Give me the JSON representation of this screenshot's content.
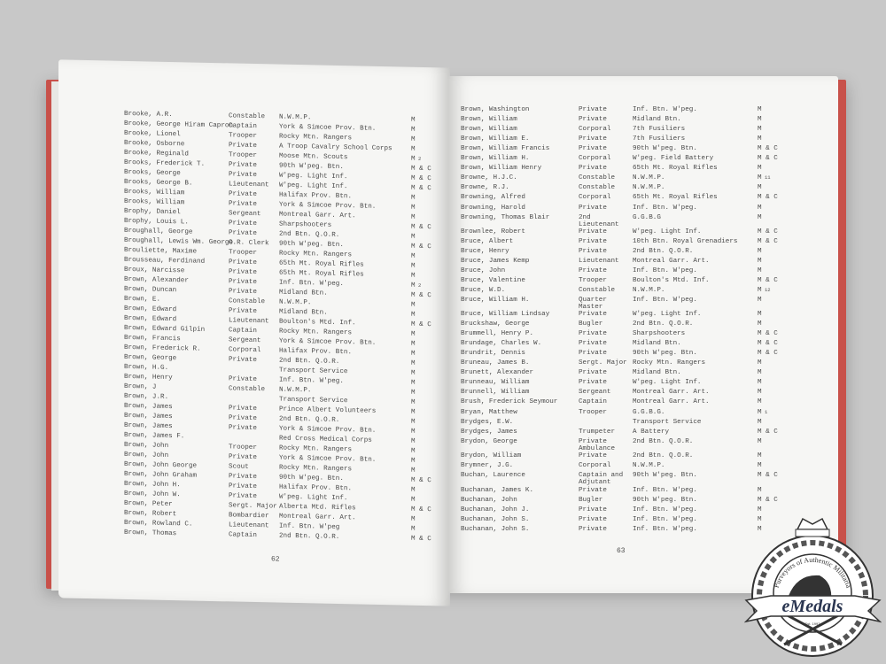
{
  "left_page": {
    "page_number": "62",
    "rows": [
      [
        "Brooke, A.R.",
        "Constable",
        "N.W.M.P.",
        "M",
        ""
      ],
      [
        "Brooke, George Hiram Capron",
        "Captain",
        "York & Simcoe Prov. Btn.",
        "M",
        ""
      ],
      [
        "Brooke, Lionel",
        "Trooper",
        "Rocky Mtn. Rangers",
        "M",
        ""
      ],
      [
        "Brooke, Osborne",
        "Private",
        "A Troop Cavalry School Corps",
        "M",
        ""
      ],
      [
        "Brooke, Reginald",
        "Trooper",
        "Moose Mtn. Scouts",
        "M",
        "2"
      ],
      [
        "Brooks, Frederick T.",
        "Private",
        "90th W'peg. Btn.",
        "M & C",
        ""
      ],
      [
        "Brooks, George",
        "Private",
        "W'peg. Light Inf.",
        "M & C",
        ""
      ],
      [
        "Brooks, George B.",
        "Lieutenant",
        "W'peg. Light Inf.",
        "M & C",
        ""
      ],
      [
        "Brooks, William",
        "Private",
        "Halifax Prov. Btn.",
        "M",
        ""
      ],
      [
        "Brooks, William",
        "Private",
        "York & Simcoe Prov. Btn.",
        "M",
        ""
      ],
      [
        "Brophy, Daniel",
        "Sergeant",
        "Montreal Garr. Art.",
        "M",
        ""
      ],
      [
        "Brophy, Louis L.",
        "Private",
        "Sharpshooters",
        "M & C",
        ""
      ],
      [
        "Broughall, George",
        "Private",
        "2nd Btn. Q.O.R.",
        "M",
        ""
      ],
      [
        "Broughall, Lewis Wm. George",
        "O.R. Clerk",
        "90th W'peg. Btn.",
        "M & C",
        ""
      ],
      [
        "Brouliette, Maxime",
        "Trooper",
        "Rocky Mtn. Rangers",
        "M",
        ""
      ],
      [
        "Brousseau, Ferdinand",
        "Private",
        "65th Mt. Royal Rifles",
        "M",
        ""
      ],
      [
        "Broux, Narcisse",
        "Private",
        "65th Mt. Royal Rifles",
        "M",
        ""
      ],
      [
        "Brown, Alexander",
        "Private",
        "Inf. Btn. W'peg.",
        "M",
        "2"
      ],
      [
        "Brown, Duncan",
        "Private",
        "Midland Btn.",
        "M & C",
        ""
      ],
      [
        "Brown, E.",
        "Constable",
        "N.W.M.P.",
        "M",
        ""
      ],
      [
        "Brown, Edward",
        "Private",
        "Midland Btn.",
        "M",
        ""
      ],
      [
        "Brown, Edward",
        "Lieutenant",
        "Boulton's Mtd. Inf.",
        "M & C",
        ""
      ],
      [
        "Brown, Edward Gilpin",
        "Captain",
        "Rocky Mtn. Rangers",
        "M",
        ""
      ],
      [
        "Brown, Francis",
        "Sergeant",
        "York & Simcoe Prov. Btn.",
        "M",
        ""
      ],
      [
        "Brown, Frederick R.",
        "Corporal",
        "Halifax Prov. Btn.",
        "M",
        ""
      ],
      [
        "Brown, George",
        "Private",
        "2nd Btn. Q.O.R.",
        "M",
        ""
      ],
      [
        "Brown, H.G.",
        "",
        "Transport Service",
        "M",
        ""
      ],
      [
        "Brown, Henry",
        "Private",
        "Inf. Btn. W'peg.",
        "M",
        ""
      ],
      [
        "Brown, J",
        "Constable",
        "N.W.M.P.",
        "M",
        ""
      ],
      [
        "Brown, J.R.",
        "",
        "Transport Service",
        "M",
        ""
      ],
      [
        "Brown, James",
        "Private",
        "Prince Albert Volunteers",
        "M",
        ""
      ],
      [
        "Brown, James",
        "Private",
        "2nd Btn. Q.O.R.",
        "M",
        ""
      ],
      [
        "Brown, James",
        "Private",
        "York & Simcoe Prov. Btn.",
        "M",
        ""
      ],
      [
        "Brown, James F.",
        "",
        "Red Cross Medical Corps",
        "M",
        ""
      ],
      [
        "Brown, John",
        "Trooper",
        "Rocky Mtn. Rangers",
        "M",
        ""
      ],
      [
        "Brown, John",
        "Private",
        "York & Simcoe Prov. Btn.",
        "M",
        ""
      ],
      [
        "Brown, John George",
        "Scout",
        "Rocky Mtn. Rangers",
        "M",
        ""
      ],
      [
        "Brown, John Graham",
        "Private",
        "90th W'peg. Btn.",
        "M & C",
        ""
      ],
      [
        "Brown, John H.",
        "Private",
        "Halifax Prov. Btn.",
        "M",
        ""
      ],
      [
        "Brown, John W.",
        "Private",
        "W'peg. Light Inf.",
        "M",
        ""
      ],
      [
        "Brown, Peter",
        "Sergt. Major",
        "Alberta Mtd. Rifles",
        "M & C",
        ""
      ],
      [
        "Brown, Robert",
        "Bombardier",
        "Montreal Garr. Art.",
        "M",
        ""
      ],
      [
        "Brown, Rowland C.",
        "Lieutenant",
        "Inf. Btn. W'peg",
        "M",
        ""
      ],
      [
        "Brown, Thomas",
        "Captain",
        "2nd Btn. Q.O.R.",
        "M & C",
        ""
      ]
    ]
  },
  "right_page": {
    "page_number": "63",
    "rows": [
      [
        "Brown, Washington",
        "Private",
        "Inf. Btn. W'peg.",
        "M",
        ""
      ],
      [
        "Brown, William",
        "Private",
        "Midland Btn.",
        "M",
        ""
      ],
      [
        "Brown, William",
        "Corporal",
        "7th Fusiliers",
        "M",
        ""
      ],
      [
        "Brown, William E.",
        "Private",
        "7th Fusiliers",
        "M",
        ""
      ],
      [
        "Brown, William Francis",
        "Private",
        "90th W'peg. Btn.",
        "M & C",
        ""
      ],
      [
        "Brown, William H.",
        "Corporal",
        "W'peg. Field Battery",
        "M & C",
        ""
      ],
      [
        "Brown, William Henry",
        "Private",
        "65th Mt. Royal Rifles",
        "M",
        ""
      ],
      [
        "Browne, H.J.C.",
        "Constable",
        "N.W.M.P.",
        "M",
        "11"
      ],
      [
        "Browne, R.J.",
        "Constable",
        "N.W.M.P.",
        "M",
        ""
      ],
      [
        "Browning, Alfred",
        "Corporal",
        "65th Mt. Royal Rifles",
        "M & C",
        ""
      ],
      [
        "Browning, Harold",
        "Private",
        "Inf. Btn. W'peg.",
        "M",
        ""
      ],
      [
        "Browning, Thomas Blair",
        "2nd Lieutenant",
        "G.G.B.G",
        "M",
        ""
      ],
      [
        "Brownlee, Robert",
        "Private",
        "W'peg. Light Inf.",
        "M & C",
        ""
      ],
      [
        "Bruce, Albert",
        "Private",
        "10th Btn. Royal Grenadiers",
        "M & C",
        ""
      ],
      [
        "Bruce, Henry",
        "Private",
        "2nd Btn. Q.O.R.",
        "M",
        ""
      ],
      [
        "Bruce, James Kemp",
        "Lieutenant",
        "Montreal Garr. Art.",
        "M",
        ""
      ],
      [
        "Bruce, John",
        "Private",
        "Inf. Btn. W'peg.",
        "M",
        ""
      ],
      [
        "Bruce, Valentine",
        "Trooper",
        "Boulton's Mtd. Inf.",
        "M & C",
        ""
      ],
      [
        "Bruce, W.D.",
        "Constable",
        "N.W.M.P.",
        "M",
        "12"
      ],
      [
        "Bruce, William H.",
        "Quarter Master",
        "Inf. Btn. W'peg.",
        "M",
        ""
      ],
      [
        "Bruce, William Lindsay",
        "Private",
        "W'peg. Light Inf.",
        "M",
        ""
      ],
      [
        "Bruckshaw, George",
        "Bugler",
        "2nd Btn. Q.O.R.",
        "M",
        ""
      ],
      [
        "Brummell, Henry P.",
        "Private",
        "Sharpshooters",
        "M & C",
        ""
      ],
      [
        "Brundage, Charles W.",
        "Private",
        "Midland Btn.",
        "M & C",
        ""
      ],
      [
        "Brundrit, Dennis",
        "Private",
        "90th W'peg. Btn.",
        "M & C",
        ""
      ],
      [
        "Bruneau, James B.",
        "Sergt. Major",
        "Rocky Mtn. Rangers",
        "M",
        ""
      ],
      [
        "Brunett, Alexander",
        "Private",
        "Midland Btn.",
        "M",
        ""
      ],
      [
        "Brunneau, William",
        "Private",
        "W'peg. Light Inf.",
        "M",
        ""
      ],
      [
        "Brunnell, William",
        "Sergeant",
        "Montreal Garr. Art.",
        "M",
        ""
      ],
      [
        "Brush, Frederick Seymour",
        "Captain",
        "Montreal Garr. Art.",
        "M",
        ""
      ],
      [
        "Bryan, Matthew",
        "Trooper",
        "G.G.B.G.",
        "M",
        "1"
      ],
      [
        "Brydges, E.W.",
        "",
        "Transport Service",
        "M",
        ""
      ],
      [
        "Brydges, James",
        "Trumpeter",
        "A Battery",
        "M & C",
        ""
      ],
      [
        "Brydon, George",
        "Private Ambulance",
        "2nd Btn. Q.O.R.",
        "M",
        ""
      ],
      [
        "Brydon, William",
        "Private",
        "2nd Btn. Q.O.R.",
        "M",
        ""
      ],
      [
        "Brymner, J.G.",
        "Corporal",
        "N.W.M.P.",
        "M",
        ""
      ],
      [
        "Buchan, Laurence",
        "Captain and Adjutant",
        "90th W'peg. Btn.",
        "M & C",
        ""
      ],
      [
        "Buchanan, James K.",
        "Private",
        "Inf. Btn. W'peg.",
        "M",
        ""
      ],
      [
        "Buchanan, John",
        "Bugler",
        "90th W'peg. Btn.",
        "M & C",
        ""
      ],
      [
        "Buchanan, John J.",
        "Private",
        "Inf. Btn. W'peg.",
        "M",
        ""
      ],
      [
        "Buchanan, John S.",
        "Private",
        "Inf. Btn. W'peg.",
        "M",
        ""
      ],
      [
        "Buchanan, John S.",
        "Private",
        "Inf. Btn. W'peg.",
        "M",
        ""
      ]
    ]
  },
  "watermark": {
    "brand": "eMedals",
    "motto": "Purveyors of Authentic Militaria",
    "established": "Est. 1997"
  },
  "colors": {
    "cover": "#c8514a",
    "page": "#f6f6f4",
    "background": "#c8c8c8",
    "text": "#4a4a4a"
  }
}
